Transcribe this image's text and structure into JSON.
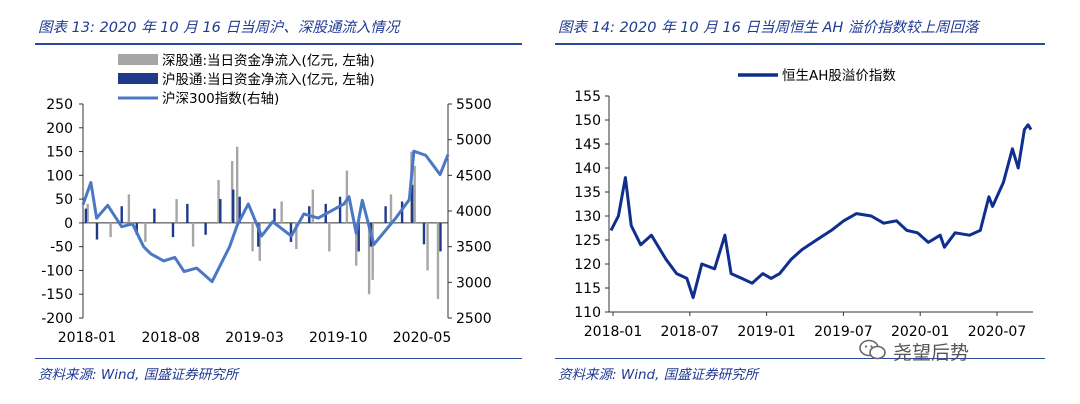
{
  "left_panel": {
    "title": "图表 13: 2020 年 10 月 16 日当周沪、深股通流入情况",
    "source": "资料来源: Wind, 国盛证券研究所"
  },
  "right_panel": {
    "title": "图表 14: 2020 年 10 月 16 日当周恒生 AH 溢价指数较上周回落",
    "source": "资料来源: Wind, 国盛证券研究所"
  },
  "watermark": "尧望后势",
  "colors": {
    "title_blue": "#1f3a93",
    "sz_gray": "#a6a6a6",
    "sh_navy": "#1f3a8a",
    "index_blue": "#4a78c4",
    "ah_navy": "#0f2f8f"
  },
  "chart_data": [
    {
      "type": "bar",
      "xlabel": "",
      "ylabel": "",
      "x_tick_labels": [
        "2018-01",
        "2018-08",
        "2019-03",
        "2019-10",
        "2020-05"
      ],
      "x_range": [
        "2018-01-02",
        "2020-10-16"
      ],
      "ylim_left": [
        -200,
        250
      ],
      "left_ticks": [
        250,
        200,
        150,
        100,
        50,
        0,
        -50,
        -100,
        -150,
        -200
      ],
      "ylim_right": [
        2500,
        5500
      ],
      "right_ticks": [
        5500,
        5000,
        4500,
        4000,
        3500,
        3000,
        2500
      ],
      "legend_position": "top",
      "series": [
        {
          "name": "深股通:当日资金净流入(亿元, 左轴)",
          "type": "bar",
          "axis": "left",
          "dates": [
            "2018-01-15",
            "2018-03-20",
            "2018-05-10",
            "2018-06-25",
            "2018-09-20",
            "2018-11-05",
            "2019-01-15",
            "2019-02-22",
            "2019-03-08",
            "2019-04-20",
            "2019-05-10",
            "2019-07-10",
            "2019-08-20",
            "2019-10-05",
            "2019-11-20",
            "2020-01-08",
            "2020-02-03",
            "2020-03-10",
            "2020-03-20",
            "2020-05-10",
            "2020-07-06",
            "2020-07-15",
            "2020-08-20",
            "2020-09-18"
          ],
          "values": [
            40,
            -30,
            60,
            -40,
            50,
            -50,
            90,
            130,
            160,
            -60,
            -80,
            45,
            -55,
            70,
            -60,
            110,
            -90,
            -150,
            -120,
            60,
            150,
            120,
            -100,
            -160
          ]
        },
        {
          "name": "沪股通:当日资金净流入(亿元, 左轴)",
          "type": "bar",
          "axis": "left",
          "dates": [
            "2018-01-10",
            "2018-02-10",
            "2018-04-20",
            "2018-06-01",
            "2018-07-20",
            "2018-09-10",
            "2018-10-20",
            "2018-12-10",
            "2019-01-20",
            "2019-02-25",
            "2019-03-15",
            "2019-05-06",
            "2019-06-20",
            "2019-08-05",
            "2019-09-25",
            "2019-11-10",
            "2019-12-20",
            "2020-02-10",
            "2020-03-15",
            "2020-04-25",
            "2020-06-10",
            "2020-07-08",
            "2020-08-10",
            "2020-09-25"
          ],
          "values": [
            30,
            -35,
            35,
            -25,
            30,
            -30,
            40,
            -25,
            50,
            70,
            55,
            -50,
            30,
            -40,
            35,
            40,
            55,
            -60,
            -50,
            35,
            45,
            80,
            -45,
            -60
          ]
        },
        {
          "name": "沪深300指数(右轴)",
          "type": "line",
          "axis": "right",
          "dates": [
            "2018-01-02",
            "2018-01-24",
            "2018-02-09",
            "2018-03-12",
            "2018-04-20",
            "2018-05-20",
            "2018-06-20",
            "2018-07-10",
            "2018-08-15",
            "2018-09-15",
            "2018-10-11",
            "2018-11-15",
            "2018-12-28",
            "2019-02-15",
            "2019-03-08",
            "2019-04-08",
            "2019-05-15",
            "2019-06-15",
            "2019-08-06",
            "2019-09-10",
            "2019-10-20",
            "2019-12-31",
            "2020-01-14",
            "2020-02-03",
            "2020-02-20",
            "2020-03-23",
            "2020-05-20",
            "2020-06-30",
            "2020-07-13",
            "2020-08-15",
            "2020-09-24",
            "2020-10-16"
          ],
          "values": [
            4090,
            4400,
            3900,
            4080,
            3780,
            3820,
            3500,
            3400,
            3300,
            3350,
            3150,
            3200,
            3010,
            3500,
            3800,
            4100,
            3650,
            3850,
            3650,
            3960,
            3900,
            4100,
            4200,
            3690,
            4150,
            3530,
            3880,
            4160,
            4840,
            4780,
            4510,
            4790
          ]
        }
      ]
    },
    {
      "type": "line",
      "xlabel": "",
      "ylabel": "",
      "x_tick_labels": [
        "2018-01",
        "2018-07",
        "2019-01",
        "2019-07",
        "2020-01",
        "2020-07"
      ],
      "x_range": [
        "2018-01-02",
        "2020-10-16"
      ],
      "ylim": [
        110,
        155
      ],
      "y_ticks": [
        155,
        150,
        145,
        140,
        135,
        130,
        125,
        120,
        115,
        110
      ],
      "legend_position": "top",
      "series": [
        {
          "name": "恒生AH股溢价指数",
          "dates": [
            "2018-01-02",
            "2018-01-20",
            "2018-02-06",
            "2018-02-20",
            "2018-03-15",
            "2018-04-10",
            "2018-05-15",
            "2018-06-10",
            "2018-07-05",
            "2018-07-20",
            "2018-08-10",
            "2018-09-10",
            "2018-10-05",
            "2018-10-20",
            "2018-11-15",
            "2018-12-10",
            "2019-01-05",
            "2019-01-25",
            "2019-02-15",
            "2019-03-15",
            "2019-04-10",
            "2019-05-15",
            "2019-06-20",
            "2019-07-20",
            "2019-08-20",
            "2019-09-25",
            "2019-10-25",
            "2019-11-25",
            "2019-12-20",
            "2020-01-15",
            "2020-02-10",
            "2020-03-10",
            "2020-03-20",
            "2020-04-15",
            "2020-05-20",
            "2020-06-15",
            "2020-07-06",
            "2020-07-15",
            "2020-08-10",
            "2020-09-01",
            "2020-09-15",
            "2020-09-30",
            "2020-10-09",
            "2020-10-16"
          ],
          "values": [
            127,
            130,
            138,
            128,
            124,
            126,
            121,
            118,
            117,
            113,
            120,
            119,
            126,
            118,
            117,
            116,
            118,
            117,
            118,
            121,
            123,
            125,
            127,
            129,
            130.5,
            130,
            128.5,
            129,
            127,
            126.5,
            124.5,
            126,
            123.5,
            126.5,
            126,
            127,
            134,
            132,
            137,
            144,
            140,
            148,
            149,
            148
          ]
        }
      ]
    }
  ]
}
